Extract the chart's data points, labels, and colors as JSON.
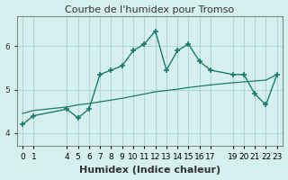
{
  "title": "Courbe de l'humidex pour Tromso",
  "xlabel": "Humidex (Indice chaleur)",
  "background_color": "#d6f0ef",
  "grid_color": "#b0d8d8",
  "line_color": "#1a7a6e",
  "x_main": [
    0,
    1,
    4,
    5,
    6,
    7,
    8,
    9,
    10,
    11,
    12,
    13,
    14,
    15,
    16,
    17,
    19,
    20,
    21,
    22,
    23
  ],
  "y_main": [
    4.2,
    4.4,
    4.55,
    4.35,
    4.55,
    5.35,
    5.45,
    5.55,
    5.9,
    6.05,
    6.35,
    5.45,
    5.9,
    6.05,
    5.65,
    5.45,
    5.35,
    5.35,
    4.9,
    4.65,
    5.35
  ],
  "x_trend": [
    0,
    1,
    4,
    5,
    6,
    7,
    8,
    9,
    10,
    11,
    12,
    13,
    14,
    15,
    16,
    17,
    19,
    20,
    21,
    22,
    23
  ],
  "y_trend": [
    4.45,
    4.52,
    4.6,
    4.65,
    4.68,
    4.72,
    4.76,
    4.8,
    4.85,
    4.9,
    4.95,
    4.98,
    5.01,
    5.05,
    5.08,
    5.11,
    5.16,
    5.18,
    5.2,
    5.22,
    5.35
  ],
  "yticks": [
    4,
    5,
    6
  ],
  "x_positions": [
    0,
    1,
    4,
    5,
    6,
    7,
    8,
    9,
    10,
    11,
    12,
    13,
    14,
    15,
    16,
    17,
    19,
    20,
    21,
    22,
    23
  ],
  "x_labels": [
    "0",
    "1",
    "4",
    "5",
    "6",
    "7",
    "8",
    "9",
    "10",
    "11",
    "12",
    "13",
    "14",
    "15",
    "16",
    "17",
    "19",
    "20",
    "21",
    "22",
    "23"
  ],
  "xlim": [
    -0.5,
    23.5
  ],
  "ylim": [
    3.7,
    6.7
  ],
  "title_fontsize": 8,
  "xlabel_fontsize": 8,
  "tick_fontsize": 6.5
}
